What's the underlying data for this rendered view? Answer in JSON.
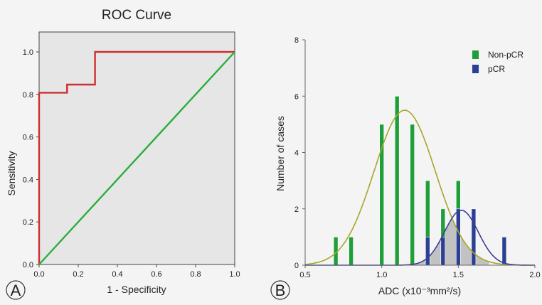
{
  "chart_data": [
    {
      "type": "line",
      "panel_label": "A",
      "title": "ROC Curve",
      "xlabel": "1 - Specificity",
      "ylabel": "Sensitivity",
      "xlim": [
        0,
        1
      ],
      "ylim": [
        0,
        1
      ],
      "xticks": [
        "0.0",
        "0.2",
        "0.4",
        "0.6",
        "0.8",
        "1.0"
      ],
      "yticks": [
        "0.0",
        "0.2",
        "0.4",
        "0.6",
        "0.8",
        "1.0"
      ],
      "background": "#e6e6e6",
      "series": [
        {
          "color": "#cc2f2f",
          "points": [
            [
              0,
              0
            ],
            [
              0,
              0.808
            ],
            [
              0.143,
              0.808
            ],
            [
              0.143,
              0.846
            ],
            [
              0.286,
              0.846
            ],
            [
              0.286,
              1.0
            ],
            [
              1.0,
              1.0
            ]
          ]
        },
        {
          "color": "#29ad3c",
          "points": [
            [
              0,
              0
            ],
            [
              1,
              1
            ]
          ]
        }
      ]
    },
    {
      "type": "bar",
      "panel_label": "B",
      "xlabel": "ADC (x10⁻³mm²/s)",
      "ylabel": "Number of cases",
      "xlim": [
        0.5,
        2.0
      ],
      "ylim": [
        0,
        8
      ],
      "xticks": [
        "0.5",
        "1.0",
        "1.5",
        "2.0"
      ],
      "yticks": [
        "0",
        "2",
        "4",
        "6",
        "8"
      ],
      "legend_position": "top-right",
      "series": [
        {
          "name": "Non-pCR",
          "color": "#1f9e3a",
          "x": [
            0.7,
            0.8,
            1.0,
            1.1,
            1.2,
            1.3,
            1.4,
            1.5
          ],
          "values": [
            1,
            1,
            5,
            6,
            5,
            3,
            2,
            3
          ]
        },
        {
          "name": "pCR",
          "color": "#2b3f93",
          "x": [
            1.3,
            1.4,
            1.5,
            1.6,
            1.8
          ],
          "values": [
            1,
            1,
            2,
            2,
            1
          ]
        }
      ],
      "fit_curves": [
        {
          "color": "#a7a62c",
          "mean": 1.15,
          "sd": 0.2,
          "peak": 5.5
        },
        {
          "color": "#3b3f99",
          "mean": 1.52,
          "sd": 0.11,
          "peak": 1.95
        }
      ],
      "overlap_fill": "#c2c2c2"
    }
  ]
}
